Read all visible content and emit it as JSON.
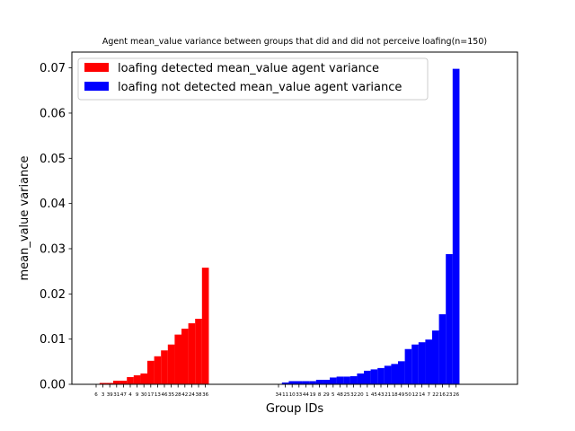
{
  "chart_data": {
    "type": "bar",
    "title": "Agent mean_value variance between groups that did and did not perceive loafing(n=150)",
    "xlabel": "Group IDs",
    "ylabel": "mean_value variance",
    "ylim": [
      0,
      0.0735
    ],
    "yticks": [
      "0.00",
      "0.01",
      "0.02",
      "0.03",
      "0.04",
      "0.05",
      "0.06",
      "0.07"
    ],
    "legend_position": "upper-left",
    "grid": false,
    "series": [
      {
        "name": "loafing detected mean_value agent variance",
        "color": "#ff0000",
        "categories": [
          "6",
          "3",
          "39",
          "31",
          "47",
          "4",
          "9",
          "30",
          "17",
          "13",
          "46",
          "35",
          "28",
          "42",
          "24",
          "38",
          "36"
        ],
        "values": [
          0.0,
          0.0003,
          0.0003,
          0.0008,
          0.0008,
          0.0016,
          0.002,
          0.0024,
          0.0052,
          0.0062,
          0.0075,
          0.0088,
          0.011,
          0.0123,
          0.0135,
          0.0145,
          0.0258
        ]
      },
      {
        "name": "loafing not detected mean_value agent variance",
        "color": "#0000ff",
        "categories": [
          "34",
          "11",
          "10",
          "33",
          "44",
          "19",
          "8",
          "29",
          "5",
          "48",
          "25",
          "32",
          "20",
          "1",
          "45",
          "43",
          "21",
          "18",
          "49",
          "50",
          "12",
          "14",
          "7",
          "22",
          "16",
          "23",
          "26"
        ],
        "values": [
          0.0,
          0.0004,
          0.0007,
          0.0007,
          0.0007,
          0.0007,
          0.001,
          0.001,
          0.0015,
          0.0017,
          0.0017,
          0.0018,
          0.0024,
          0.003,
          0.0033,
          0.0036,
          0.0041,
          0.0045,
          0.0051,
          0.0078,
          0.0088,
          0.0093,
          0.0099,
          0.0119,
          0.0155,
          0.0288,
          0.0698
        ]
      }
    ]
  }
}
